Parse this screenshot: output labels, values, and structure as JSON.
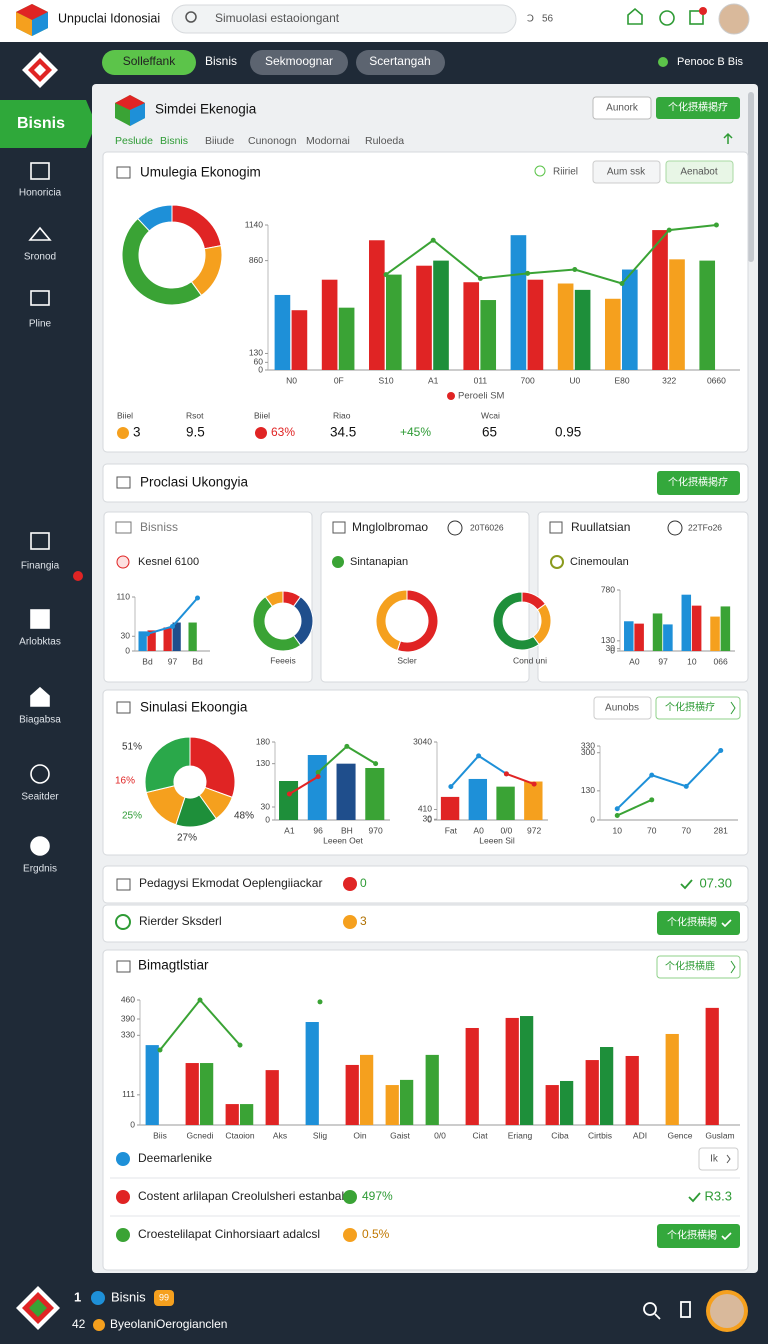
{
  "header": {
    "title": "Unpuclai Idonosiai",
    "search": "Simuolasi estaoiongant",
    "search_badge": "56"
  },
  "tabs": [
    "Solleffank",
    "Bisnis",
    "Sekmoognar",
    "Scertangah"
  ],
  "status": "Penooc B Bis",
  "sidebar": {
    "active": "Bisnis",
    "items": [
      "Honoricia",
      "Sronod",
      "Pline",
      "Finangia",
      "Arlobktas",
      "Biagabsa",
      "Seaitder",
      "Ergdnis"
    ]
  },
  "panel": {
    "title": "Simdei Ekenogia",
    "buttons": [
      "Aunork",
      "个化摂横掲疗"
    ],
    "subtabs": [
      "Peslude",
      "Bisnis",
      "Biiude",
      "Cunonogn",
      "Modornai",
      "Ruloeda"
    ]
  },
  "section1": {
    "title": "Umulegia Ekonogim",
    "controls": [
      "Riiriel",
      "Aum ssk",
      "Aenabot"
    ],
    "donut": {
      "type": "pie",
      "values": [
        22,
        18,
        48,
        12
      ],
      "colors": [
        "#e02424",
        "#f5a01e",
        "#3aa335",
        "#1e90d8"
      ]
    },
    "chart": {
      "type": "bar",
      "categories": [
        "N0",
        "0F",
        "S10",
        "A1",
        "011",
        "700",
        "U0",
        "E80",
        "322",
        "0660"
      ],
      "ylim": [
        0,
        1140
      ],
      "yticks": [
        0,
        60,
        130,
        860,
        1140
      ],
      "legend": "Peroeli SM",
      "series": [
        {
          "kind": "bar",
          "colors": [
            "#1e90d8",
            "#e02424",
            "#e02424",
            "#e02424",
            "#e02424",
            "#1e90d8",
            "#f5a01e",
            "#f5a01e",
            "#e02424",
            "#3aa335"
          ],
          "values": [
            590,
            710,
            1020,
            820,
            690,
            1060,
            680,
            560,
            1100,
            860
          ]
        },
        {
          "kind": "bar",
          "colors": [
            "#e02424",
            "#3aa335",
            "#3aa335",
            "#1e8f3a",
            "#3aa335",
            "#e02424",
            "#1e8f3a",
            "#1e90d8",
            "#f5a01e",
            "#3aa335"
          ],
          "values": [
            470,
            490,
            750,
            860,
            550,
            710,
            630,
            790,
            870,
            null
          ]
        },
        {
          "kind": "line",
          "color": "#3aa335",
          "values": [
            null,
            null,
            750,
            1020,
            720,
            760,
            790,
            680,
            1100,
            1140
          ]
        }
      ]
    },
    "stat_labels": [
      "Biiel",
      "Rsot",
      "Biiel",
      "Riao",
      "Wcai"
    ],
    "stat_values": [
      "3",
      "9.5",
      "63%",
      "34.5",
      "+45%",
      "65",
      "0.95"
    ]
  },
  "section2": {
    "title": "Proclasi Ukongyia",
    "button": "个化摂横掲疗",
    "cards": [
      {
        "title": "Bisniss",
        "subtitle": "Kesnel 6100",
        "chart": {
          "type": "bar",
          "categories": [
            "Bd",
            "97",
            "Bd"
          ],
          "ylim": [
            0,
            110
          ],
          "yticks": [
            0,
            30,
            110
          ],
          "series": [
            {
              "kind": "bar",
              "colors": [
                "#1e90d8",
                "#e02424",
                "#3aa335"
              ],
              "values": [
                40,
                48,
                58
              ]
            },
            {
              "kind": "bar",
              "colors": [
                "#e02424",
                "#1f4e8c",
                "#1e8f3a"
              ],
              "values": [
                42,
                58,
                null
              ]
            },
            {
              "kind": "line",
              "color": "#1e90d8",
              "values": [
                35,
                50,
                108
              ]
            }
          ]
        },
        "donut": {
          "type": "pie",
          "values": [
            10,
            30,
            50,
            10
          ],
          "colors": [
            "#e02424",
            "#1f4e8c",
            "#3aa335",
            "#f5a01e"
          ],
          "label": "Feeeis"
        }
      },
      {
        "title": "Mnglolbromao",
        "date": "20T6026",
        "subtitle": "Sintanapian",
        "donuts": [
          {
            "type": "pie",
            "values": [
              55,
              45
            ],
            "colors": [
              "#e02424",
              "#f5a01e"
            ],
            "label": "Scler"
          },
          {
            "type": "pie",
            "values": [
              15,
              25,
              60
            ],
            "colors": [
              "#e02424",
              "#f5a01e",
              "#1e8f3a"
            ],
            "label": "Cond uni"
          }
        ]
      },
      {
        "title": "Ruullatsian",
        "date": "22TFo26",
        "subtitle": "Cinemoulan",
        "chart": {
          "type": "bar",
          "categories": [
            "A0",
            "97",
            "10",
            "066"
          ],
          "ylim": [
            0,
            780
          ],
          "yticks": [
            0,
            30,
            130,
            780
          ],
          "series": [
            {
              "kind": "bar",
              "colors": [
                "#1e90d8",
                "#3aa335",
                "#1e90d8",
                "#f5a01e"
              ],
              "values": [
                380,
                480,
                720,
                440
              ]
            },
            {
              "kind": "bar",
              "colors": [
                "#e02424",
                "#1e90d8",
                "#e02424",
                "#3aa335"
              ],
              "values": [
                350,
                340,
                580,
                570
              ]
            }
          ]
        }
      }
    ]
  },
  "section3": {
    "title": "Sinulasi Ekoongia",
    "buttons": [
      "Aunobs",
      "个化摂横疗"
    ],
    "pie": {
      "type": "pie",
      "values": [
        51,
        16,
        25,
        27,
        48
      ],
      "value_labels": [
        "51%",
        "16%",
        "25%",
        "27%",
        "48%"
      ],
      "colors": [
        "#e02424",
        "#f5a01e",
        "#1e8f3a",
        "#f5a01e",
        "#2aa84a"
      ]
    },
    "charts": [
      {
        "type": "bar",
        "categories": [
          "A1",
          "96",
          "BH",
          "970"
        ],
        "ylim": [
          0,
          180
        ],
        "yticks": [
          0,
          30,
          130,
          180
        ],
        "caption": "Leeen Oet",
        "series": [
          {
            "kind": "bar",
            "colors": [
              "#1e8f3a",
              "#1e90d8",
              "#1f4e8c",
              "#3aa335"
            ],
            "values": [
              90,
              150,
              130,
              120
            ]
          },
          {
            "kind": "line",
            "color": "#3aa335",
            "values": [
              null,
              110,
              170,
              130
            ]
          },
          {
            "kind": "line",
            "color": "#e02424",
            "values": [
              60,
              100,
              null,
              null
            ]
          }
        ]
      },
      {
        "type": "bar",
        "categories": [
          "Fat",
          "A0",
          "0/0",
          "972"
        ],
        "ylim": [
          0,
          3040
        ],
        "yticks": [
          0,
          30,
          410,
          3040
        ],
        "caption": "Leeen Sil",
        "series": [
          {
            "kind": "bar",
            "colors": [
              "#e02424",
              "#1e90d8",
              "#3aa335",
              "#f5a01e"
            ],
            "values": [
              900,
              1600,
              1300,
              1500
            ]
          },
          {
            "kind": "line",
            "color": "#1e90d8",
            "values": [
              1300,
              2500,
              1800,
              null
            ]
          },
          {
            "kind": "line",
            "color": "#e02424",
            "values": [
              null,
              null,
              1800,
              1400
            ]
          }
        ]
      },
      {
        "type": "line",
        "categories": [
          "10",
          "70",
          "70",
          "281"
        ],
        "ylim": [
          0,
          330
        ],
        "yticks": [
          0,
          130,
          300,
          330
        ],
        "series": [
          {
            "kind": "line",
            "color": "#1e90d8",
            "values": [
              50,
              200,
              150,
              310
            ]
          },
          {
            "kind": "line",
            "color": "#3aa335",
            "values": [
              20,
              90,
              null,
              null
            ]
          }
        ]
      }
    ]
  },
  "rows": [
    {
      "text": "Pedagysi Ekmodat Oeplengiiackar",
      "badge": "0",
      "value": "07.30"
    },
    {
      "text": "Rierder Sksderl",
      "badge": "3",
      "button": "个化摂横掲"
    }
  ],
  "section4": {
    "title": "Bimagtlstiar",
    "button": "个化摂横鹿",
    "chart": {
      "type": "bar",
      "categories": [
        "Biis",
        "Gcnedi",
        "Ctaoion",
        "Aks",
        "Slig",
        "Oin",
        "Gaist",
        "0/0",
        "Ciat",
        "Eriang",
        "Ciba",
        "Cirtbis",
        "ADI",
        "Gence",
        "Guslam"
      ],
      "ylim": [
        0,
        460
      ],
      "yticks": [
        0,
        111,
        330,
        390,
        460
      ],
      "series": [
        {
          "kind": "bar",
          "colors": [
            "#1e90d8",
            "#e02424",
            "#e02424",
            "#e02424",
            "#1e90d8",
            "#e02424",
            "#f5a01e",
            "#3aa335",
            "#e02424",
            "#e02424",
            "#e02424",
            "#e02424",
            "#e02424",
            "#f5a01e",
            "#e02424"
          ],
          "values": [
            294,
            228,
            77,
            202,
            379,
            221,
            147,
            258,
            357,
            394,
            147,
            239,
            254,
            335,
            431
          ]
        },
        {
          "kind": "bar",
          "colors": [
            "#3aa335",
            "#3aa335",
            "#3aa335",
            "#3aa335",
            "#3aa335",
            "#f5a01e",
            "#3aa335",
            "#3aa335",
            "#3aa335",
            "#1e8f3a",
            "#1e8f3a",
            "#1e8f3a",
            "#3aa335",
            "#3aa335",
            "#3aa335"
          ],
          "values": [
            null,
            228,
            77,
            null,
            null,
            258,
            166,
            null,
            null,
            401,
            162,
            287,
            null,
            null,
            null
          ]
        },
        {
          "kind": "line",
          "color": "#3aa335",
          "values": [
            276,
            460,
            294,
            null,
            453,
            null,
            null,
            null,
            null,
            null,
            null,
            null,
            null,
            null,
            null
          ]
        }
      ]
    },
    "list": [
      {
        "text": "Deemarlenike",
        "button": "Ik"
      },
      {
        "text": "Costent arlilapan Creolulsheri estanbal",
        "badge": "497%",
        "value": "R3.3"
      },
      {
        "text": "Croestelilapat Cinhorsiaart adalcsl",
        "badge": "0.5%",
        "button": "个化摂横掲"
      }
    ]
  },
  "footer": {
    "line1_num": "1",
    "line1_text": "Bisnis",
    "badge": "99",
    "line2_num": "42",
    "line2_text": "ByeolaniOerogianclen"
  }
}
